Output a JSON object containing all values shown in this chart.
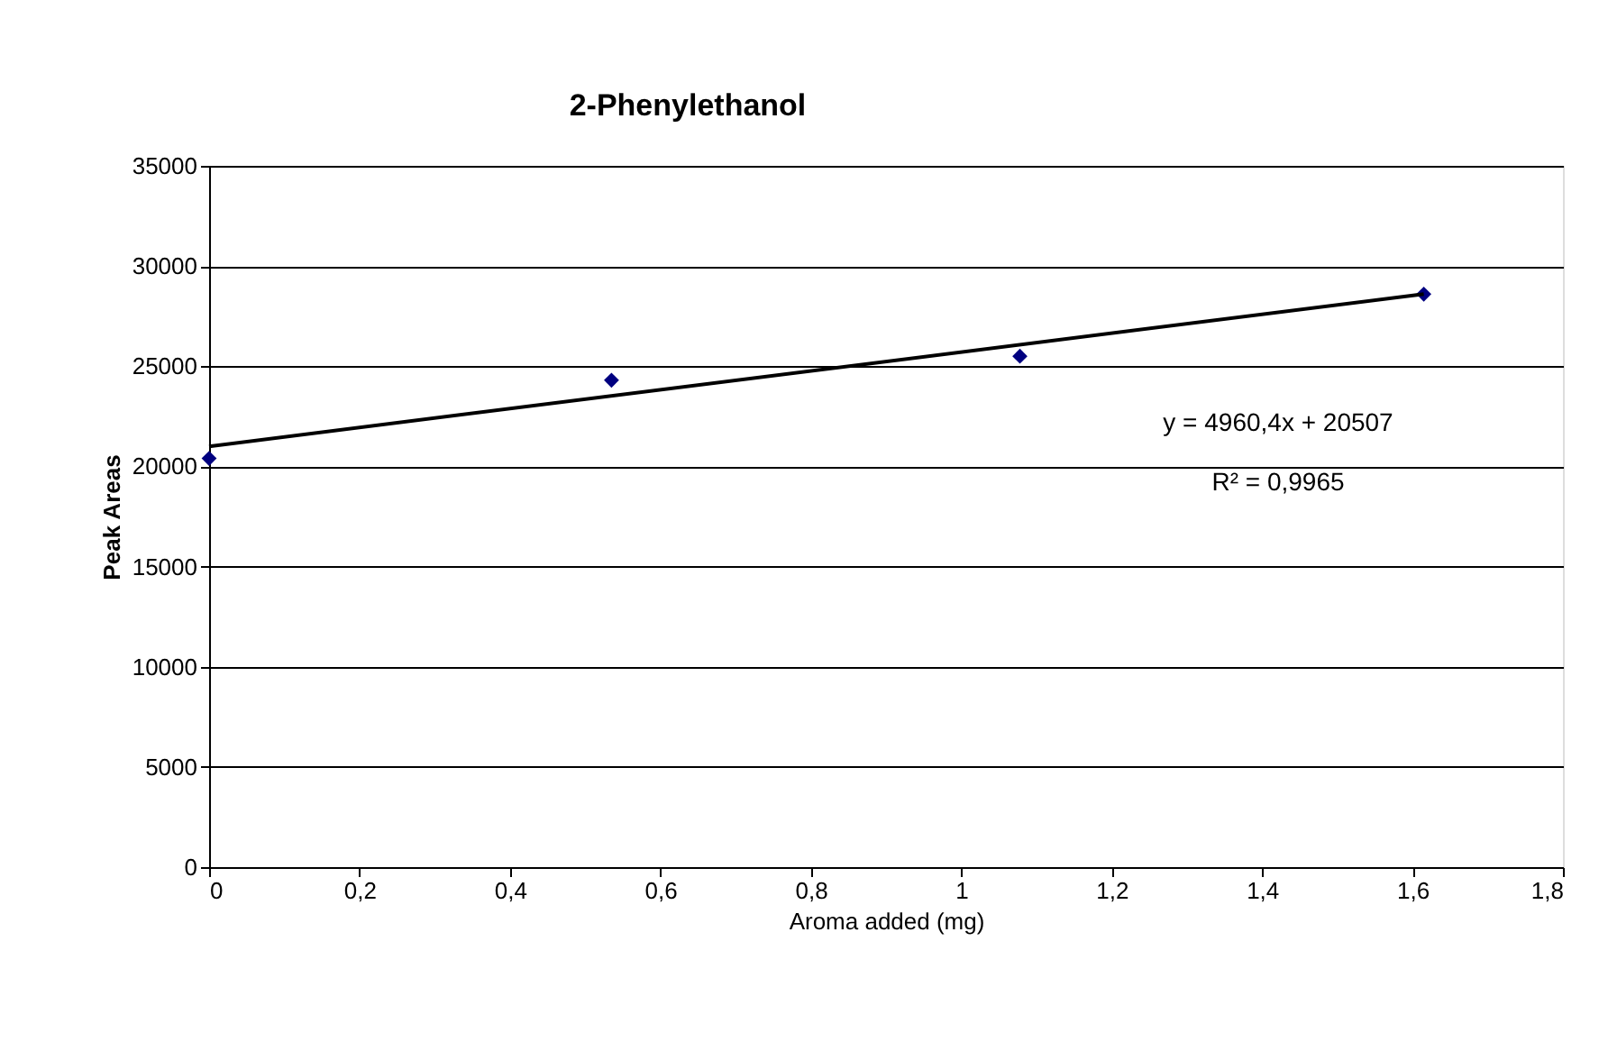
{
  "chart_data": {
    "type": "scatter",
    "title": "2-Phenylethanol",
    "xlabel": "Aroma added (mg)",
    "ylabel": "Peak Areas",
    "series": [
      {
        "color": "#000080",
        "marker": "diamond",
        "x": [
          0,
          0.535,
          1.078,
          1.615
        ],
        "values": [
          20400,
          24300,
          25500,
          28600
        ]
      },
      {
        "type": "line",
        "color": "#000000",
        "x": [
          0,
          1.615
        ],
        "values": [
          21000,
          28600
        ]
      }
    ],
    "xlim": [
      0,
      1.8
    ],
    "xticks": [
      0,
      {
        "value": 0.2,
        "label": "0,2"
      },
      {
        "value": 0.4,
        "label": "0,4"
      },
      {
        "value": 0.6,
        "label": "0,6"
      },
      {
        "value": 0.8,
        "label": "0,8"
      },
      1,
      {
        "value": 1.2,
        "label": "1,2"
      },
      {
        "value": 1.4,
        "label": "1,4"
      },
      {
        "value": 1.6,
        "label": "1,6"
      },
      {
        "value": 1.8,
        "label": "1,8"
      }
    ],
    "ylim": [
      0,
      35000
    ],
    "yticks": [
      0,
      5000,
      10000,
      15000,
      20000,
      25000,
      30000,
      35000
    ],
    "grid": "y",
    "legend": false,
    "annotations": [
      "y = 4960,4x + 20507",
      "R² = 0,9965"
    ]
  }
}
